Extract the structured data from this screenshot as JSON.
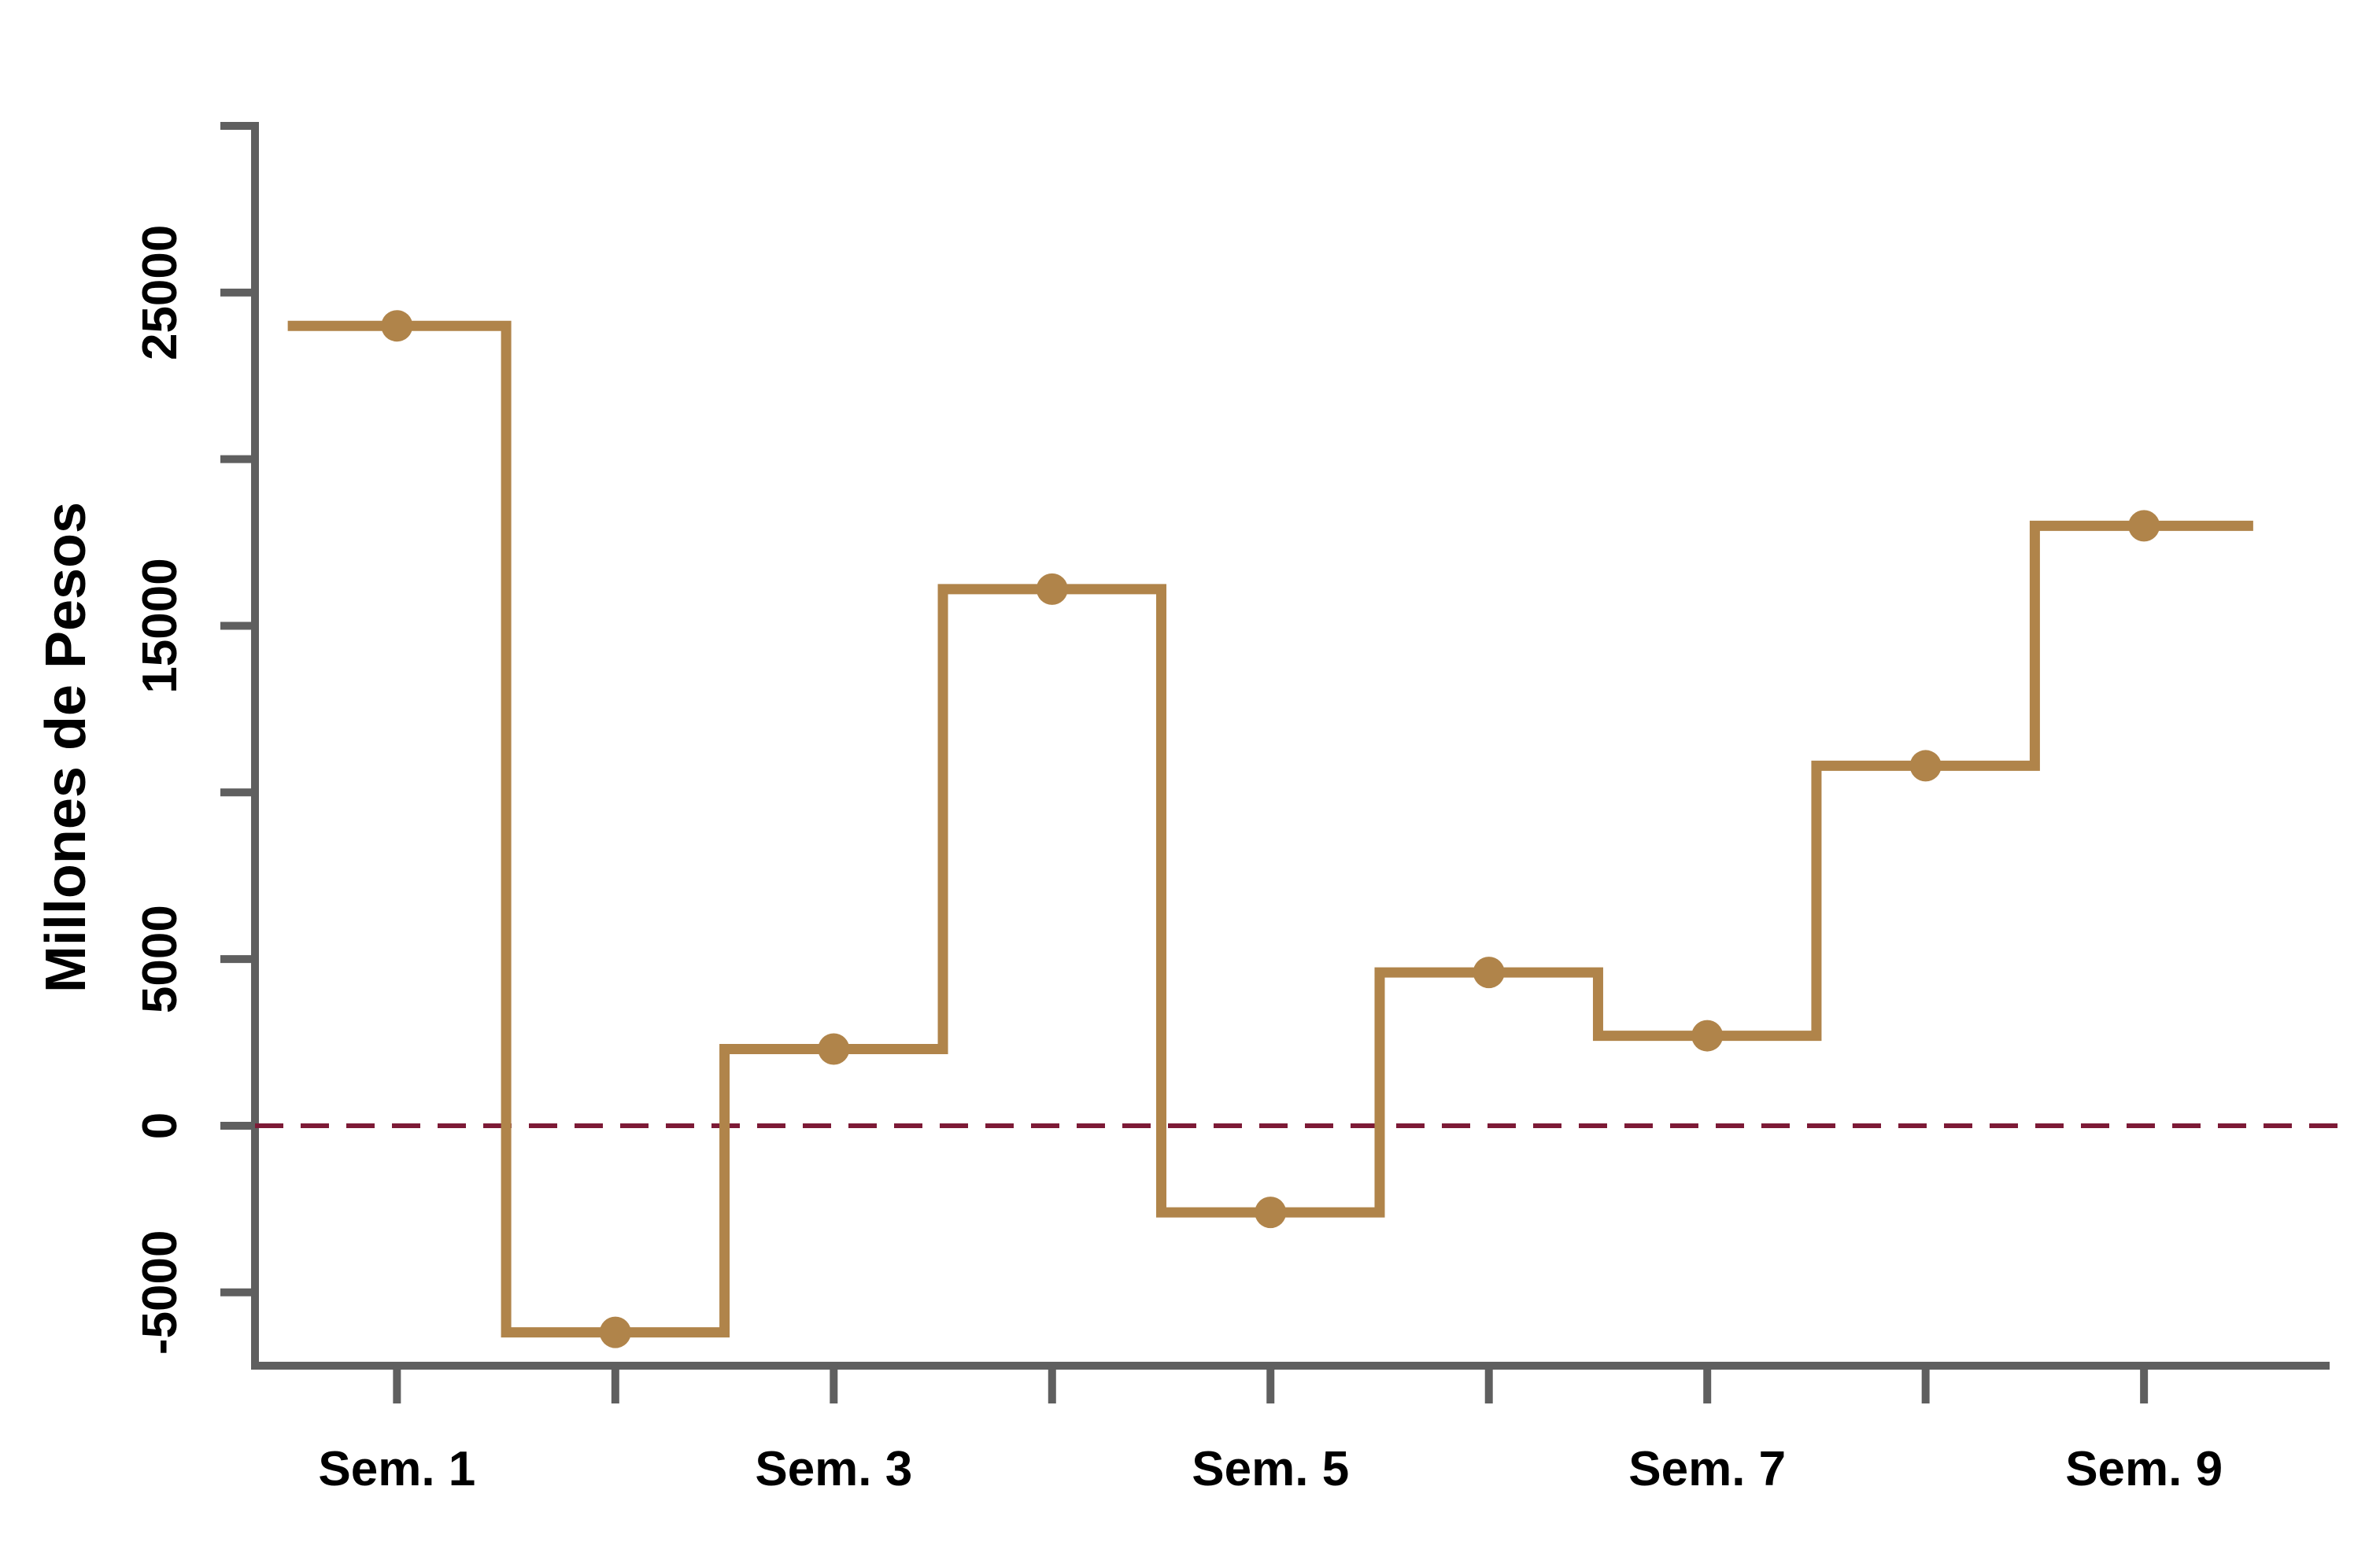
{
  "chart_data": {
    "type": "line",
    "step": "mid",
    "title": "",
    "xlabel": "",
    "ylabel": "Millones de Pesos",
    "x": [
      1,
      2,
      3,
      4,
      5,
      6,
      7,
      8,
      9
    ],
    "x_tick_labels": [
      {
        "x": 1,
        "label": "Sem. 1"
      },
      {
        "x": 2,
        "label": ""
      },
      {
        "x": 3,
        "label": "Sem. 3"
      },
      {
        "x": 4,
        "label": ""
      },
      {
        "x": 5,
        "label": "Sem. 5"
      },
      {
        "x": 6,
        "label": ""
      },
      {
        "x": 7,
        "label": "Sem. 7"
      },
      {
        "x": 8,
        "label": ""
      },
      {
        "x": 9,
        "label": "Sem. 9"
      }
    ],
    "y_ticks": [
      -5000,
      0,
      5000,
      10000,
      15000,
      20000,
      25000,
      30000
    ],
    "y_tick_labels": [
      {
        "y": -5000,
        "label": "-5000"
      },
      {
        "y": 0,
        "label": "0"
      },
      {
        "y": 5000,
        "label": "5000"
      },
      {
        "y": 10000,
        "label": ""
      },
      {
        "y": 15000,
        "label": "15000"
      },
      {
        "y": 20000,
        "label": ""
      },
      {
        "y": 25000,
        "label": "25000"
      },
      {
        "y": 30000,
        "label": ""
      }
    ],
    "series": [
      {
        "values": [
          24000,
          -6200,
          2300,
          16100,
          -2600,
          4600,
          2700,
          10800,
          18000
        ],
        "color": "#b0844a"
      }
    ],
    "reference_line": {
      "y": 0,
      "style": "dashed",
      "color": "#7d1a36"
    },
    "ylim": [
      -7200,
      30000
    ],
    "xlim": [
      0.35,
      9.85
    ],
    "axis_color": "#5f5f5f",
    "grid": false,
    "legend": false
  }
}
